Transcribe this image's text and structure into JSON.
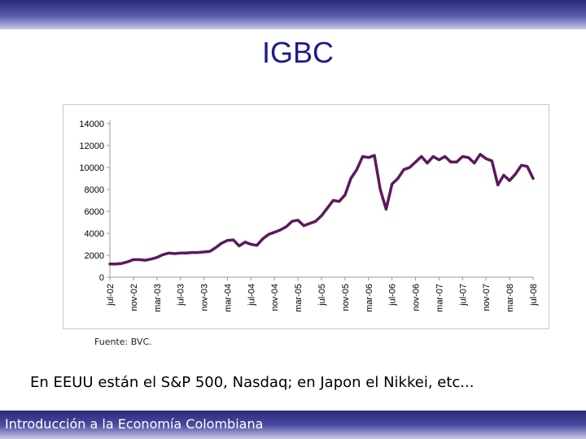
{
  "slide": {
    "title": "IGBC",
    "source": "Fuente: BVC.",
    "subtext": "En EEUU están el S&P 500, Nasdaq; en Japon el Nikkei, etc...",
    "footer": "Introducción a la Economía Colombiana"
  },
  "colors": {
    "series": "#5c1a5c",
    "title": "#1c1c8c",
    "bar_dark": "#2a2a7a"
  },
  "chart_data": {
    "type": "line",
    "title": "",
    "xlabel": "",
    "ylabel": "",
    "ylim": [
      0,
      14000
    ],
    "yticks": [
      0,
      2000,
      4000,
      6000,
      8000,
      10000,
      12000,
      14000
    ],
    "grid": false,
    "legend": "none",
    "x_range": [
      "2002-07",
      "2008-07"
    ],
    "xticks": [
      "jul-02",
      "nov-02",
      "mar-03",
      "jul-03",
      "nov-03",
      "mar-04",
      "jul-04",
      "nov-04",
      "mar-05",
      "jul-05",
      "nov-05",
      "mar-06",
      "jul-06",
      "nov-06",
      "mar-07",
      "jul-07",
      "nov-07",
      "mar-08",
      "jul-08"
    ],
    "series": [
      {
        "x": [
          "2002-07",
          "2002-08",
          "2002-09",
          "2002-10",
          "2002-11",
          "2002-12",
          "2003-01",
          "2003-02",
          "2003-03",
          "2003-04",
          "2003-05",
          "2003-06",
          "2003-07",
          "2003-08",
          "2003-09",
          "2003-10",
          "2003-11",
          "2003-12",
          "2004-01",
          "2004-02",
          "2004-03",
          "2004-04",
          "2004-05",
          "2004-06",
          "2004-07",
          "2004-08",
          "2004-09",
          "2004-10",
          "2004-11",
          "2004-12",
          "2005-01",
          "2005-02",
          "2005-03",
          "2005-04",
          "2005-05",
          "2005-06",
          "2005-07",
          "2005-08",
          "2005-09",
          "2005-10",
          "2005-11",
          "2005-12",
          "2006-01",
          "2006-02",
          "2006-03",
          "2006-04",
          "2006-05",
          "2006-06",
          "2006-07",
          "2006-08",
          "2006-09",
          "2006-10",
          "2006-11",
          "2006-12",
          "2007-01",
          "2007-02",
          "2007-03",
          "2007-04",
          "2007-05",
          "2007-06",
          "2007-07",
          "2007-08",
          "2007-09",
          "2007-10",
          "2007-11",
          "2007-12",
          "2008-01",
          "2008-02",
          "2008-03",
          "2008-04",
          "2008-05",
          "2008-06",
          "2008-07"
        ],
        "values": [
          1200,
          1200,
          1250,
          1400,
          1600,
          1600,
          1550,
          1650,
          1800,
          2050,
          2200,
          2150,
          2200,
          2200,
          2250,
          2250,
          2300,
          2350,
          2700,
          3100,
          3350,
          3400,
          2850,
          3200,
          3000,
          2900,
          3500,
          3900,
          4100,
          4300,
          4600,
          5100,
          5200,
          4700,
          4900,
          5100,
          5600,
          6300,
          7000,
          6900,
          7500,
          9000,
          9800,
          11000,
          10900,
          11100,
          8000,
          6200,
          8500,
          9000,
          9800,
          10000,
          10500,
          11000,
          10400,
          11000,
          10700,
          11000,
          10500,
          10500,
          11000,
          10900,
          10400,
          11200,
          10800,
          10600,
          8400,
          9300,
          8800,
          9400,
          10200,
          10100,
          9000
        ]
      }
    ]
  }
}
